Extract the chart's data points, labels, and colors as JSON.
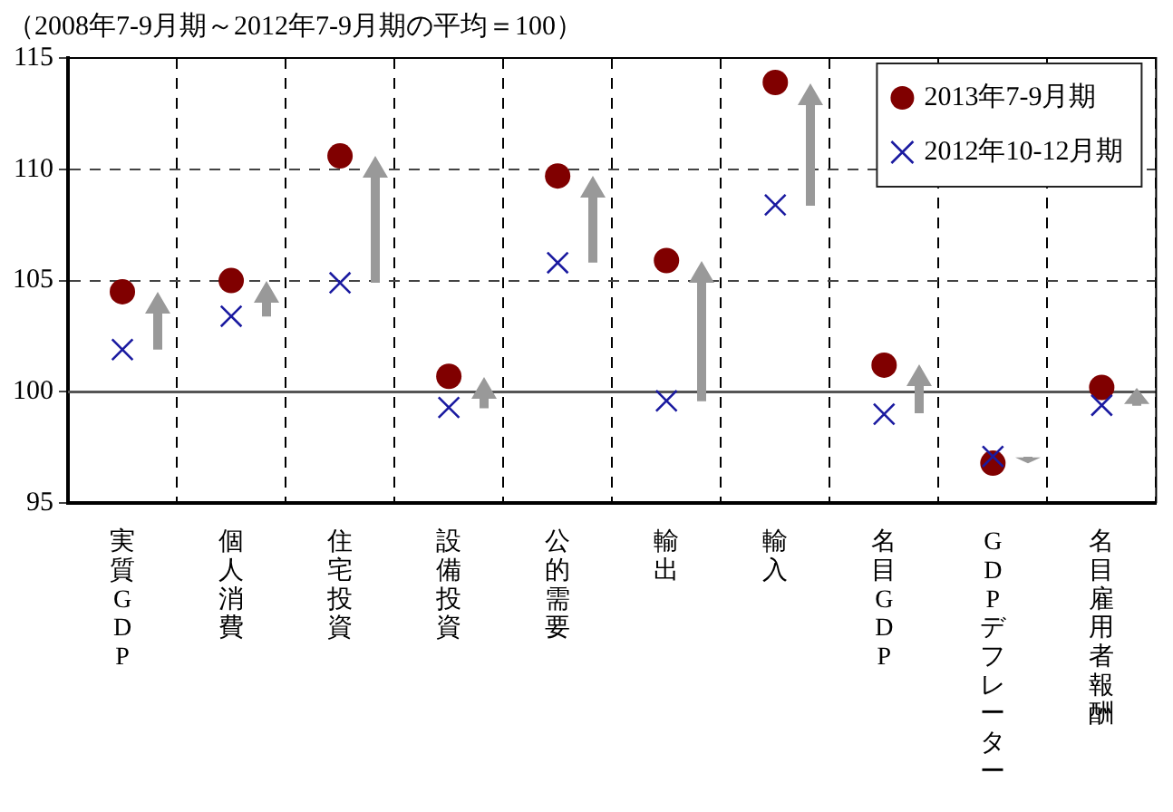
{
  "chart_data": {
    "type": "scatter",
    "subtitle": "（2008年7-9月期～2012年7-9月期の平均＝100）",
    "categories": [
      "実質GDP",
      "個人消費",
      "住宅投資",
      "設備投資",
      "公的需要",
      "輸出",
      "輸入",
      "名目GDP",
      "GDPデフレーター",
      "名目雇用者報酬"
    ],
    "series": [
      {
        "name": "2013年7-9月期",
        "color": "#800000",
        "marker": "circle",
        "values": [
          104.5,
          105.0,
          110.6,
          100.7,
          109.7,
          105.9,
          113.9,
          101.2,
          96.8,
          100.2
        ]
      },
      {
        "name": "2012年10-12月期",
        "color": "#1a1aa0",
        "marker": "cross",
        "values": [
          101.9,
          103.4,
          104.9,
          99.3,
          105.8,
          99.6,
          108.4,
          99.0,
          97.1,
          99.4
        ]
      }
    ],
    "ylim": [
      95,
      115
    ],
    "yticks": [
      95,
      100,
      105,
      110,
      115
    ],
    "grid": true,
    "legend": "top right",
    "ref_lines": [
      {
        "axis": "y",
        "value": 100,
        "color": "#555555",
        "line_style": "solid"
      }
    ]
  }
}
